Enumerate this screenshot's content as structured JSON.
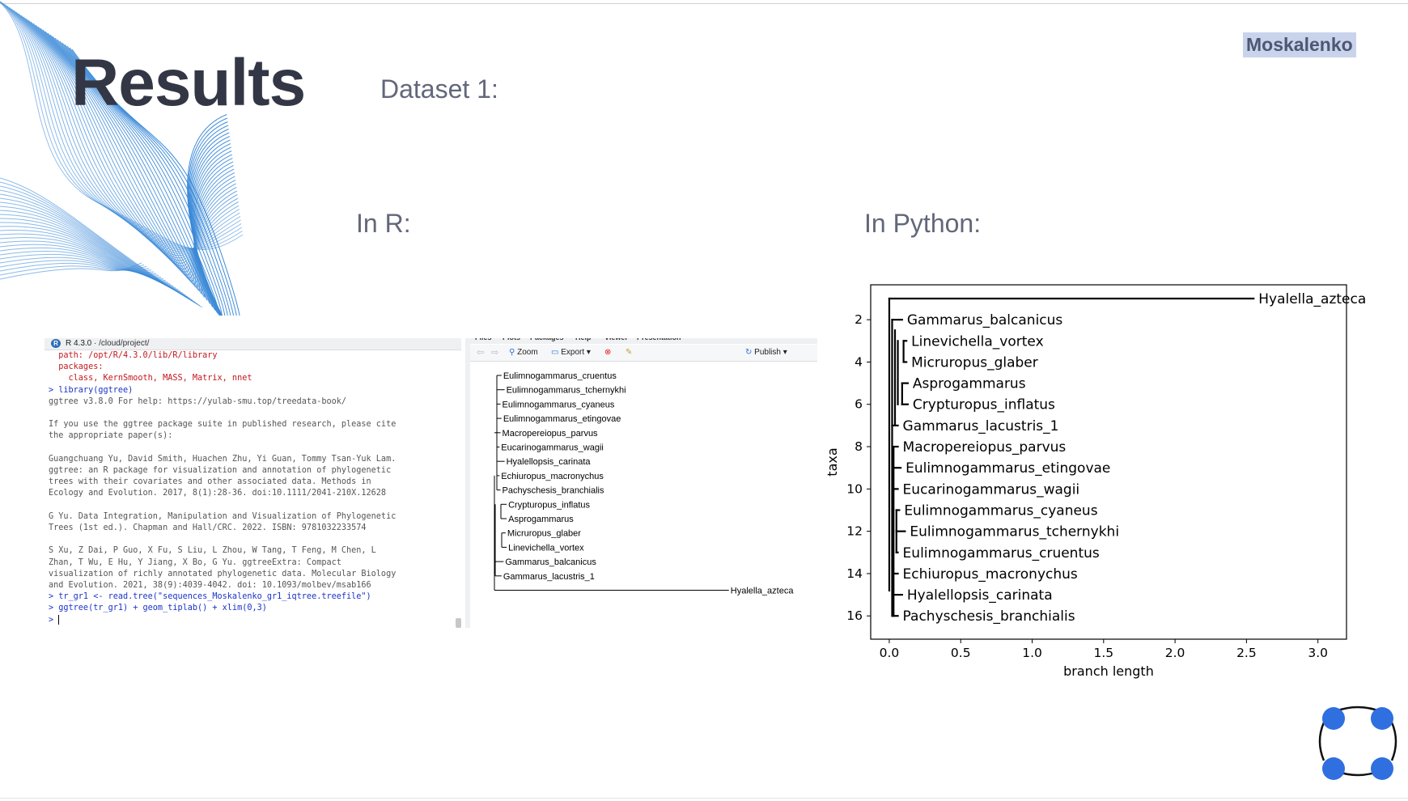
{
  "slide": {
    "title": "Results",
    "author": "Moskalenko",
    "dataset_label": "Dataset 1:",
    "r_label": "In R:",
    "python_label": "In Python:"
  },
  "rstudio": {
    "console_title": "R 4.3.0",
    "console_path": "/cloud/project/",
    "console_lines": [
      {
        "text": "  path: /opt/R/4.3.0/lib/R/library",
        "style": "red"
      },
      {
        "text": "  packages:",
        "style": "red"
      },
      {
        "text": "    class, KernSmooth, MASS, Matrix, nnet",
        "style": "red"
      },
      {
        "text": "> library(ggtree)",
        "style": "blue"
      },
      {
        "text": "ggtree v3.8.0 For help: https://yulab-smu.top/treedata-book/",
        "style": "gray"
      },
      {
        "text": "",
        "style": "gray"
      },
      {
        "text": "If you use the ggtree package suite in published research, please cite",
        "style": "gray"
      },
      {
        "text": "the appropriate paper(s):",
        "style": "gray"
      },
      {
        "text": "",
        "style": "gray"
      },
      {
        "text": "Guangchuang Yu, David Smith, Huachen Zhu, Yi Guan, Tommy Tsan-Yuk Lam.",
        "style": "gray"
      },
      {
        "text": "ggtree: an R package for visualization and annotation of phylogenetic",
        "style": "gray"
      },
      {
        "text": "trees with their covariates and other associated data. Methods in",
        "style": "gray"
      },
      {
        "text": "Ecology and Evolution. 2017, 8(1):28-36. doi:10.1111/2041-210X.12628",
        "style": "gray"
      },
      {
        "text": "",
        "style": "gray"
      },
      {
        "text": "G Yu. Data Integration, Manipulation and Visualization of Phylogenetic",
        "style": "gray"
      },
      {
        "text": "Trees (1st ed.). Chapman and Hall/CRC. 2022. ISBN: 9781032233574",
        "style": "gray"
      },
      {
        "text": "",
        "style": "gray"
      },
      {
        "text": "S Xu, Z Dai, P Guo, X Fu, S Liu, L Zhou, W Tang, T Feng, M Chen, L",
        "style": "gray"
      },
      {
        "text": "Zhan, T Wu, E Hu, Y Jiang, X Bo, G Yu. ggtreeExtra: Compact",
        "style": "gray"
      },
      {
        "text": "visualization of richly annotated phylogenetic data. Molecular Biology",
        "style": "gray"
      },
      {
        "text": "and Evolution. 2021, 38(9):4039-4042. doi: 10.1093/molbev/msab166",
        "style": "gray"
      },
      {
        "text": "> tr_gr1 <- read.tree(\"sequences_Moskalenko_gr1_iqtree.treefile\")",
        "style": "blue"
      },
      {
        "text": "> ggtree(tr_gr1) + geom_tiplab() + xlim(0,3)",
        "style": "blue"
      }
    ],
    "prompt": "> ",
    "viewer_tabs": [
      "Files",
      "Plots",
      "Packages",
      "Help",
      "Viewer",
      "Presentation"
    ],
    "toolbar": {
      "zoom": "Zoom",
      "export": "Export",
      "publish": "Publish"
    },
    "tree_tips": [
      "Eulimnogammarus_cruentus",
      "Eulimnogammarus_tchernykhi",
      "Eulimnogammarus_cyaneus",
      "Eulimnogammarus_etingovae",
      "Macropereiopus_parvus",
      "Eucarinogammarus_wagii",
      "Hyalellopsis_carinata",
      "Echiuropus_macronychus",
      "Pachyschesis_branchialis",
      "Crypturopus_inflatus",
      "Asprogammarus",
      "Micruropus_glaber",
      "Linevichella_vortex",
      "Gammarus_balcanicus",
      "Gammarus_lacustris_1",
      "Hyalella_azteca"
    ],
    "tree_tip_branch_length": [
      0.07,
      0.1,
      0.06,
      0.07,
      0.06,
      0.05,
      0.1,
      0.05,
      0.06,
      0.12,
      0.12,
      0.11,
      0.12,
      0.09,
      0.07,
      2.3
    ]
  },
  "chart_data": {
    "type": "dendrogram",
    "xlabel": "branch length",
    "ylabel": "taxa",
    "xlim": [
      -0.13,
      3.2
    ],
    "ylim": [
      17.1,
      0.35
    ],
    "xticks": [
      0.0,
      0.5,
      1.0,
      1.5,
      2.0,
      2.5,
      3.0
    ],
    "xtick_labels": [
      "0.0",
      "0.5",
      "1.0",
      "1.5",
      "2.0",
      "2.5",
      "3.0"
    ],
    "yticks": [
      2,
      4,
      6,
      8,
      10,
      12,
      14,
      16
    ],
    "tips": [
      {
        "name": "Hyalella_azteca",
        "y": 1,
        "x": 2.55
      },
      {
        "name": "Gammarus_balcanicus",
        "y": 2,
        "x": 0.09
      },
      {
        "name": "Linevichella_vortex",
        "y": 3,
        "x": 0.12
      },
      {
        "name": "Micruropus_glaber",
        "y": 4,
        "x": 0.12
      },
      {
        "name": "Asprogammarus",
        "y": 5,
        "x": 0.13
      },
      {
        "name": "Crypturopus_inflatus",
        "y": 6,
        "x": 0.13
      },
      {
        "name": "Gammarus_lacustris_1",
        "y": 7,
        "x": 0.06
      },
      {
        "name": "Macropereiopus_parvus",
        "y": 8,
        "x": 0.06
      },
      {
        "name": "Eulimnogammarus_etingovae",
        "y": 9,
        "x": 0.08
      },
      {
        "name": "Eucarinogammarus_wagii",
        "y": 10,
        "x": 0.06
      },
      {
        "name": "Eulimnogammarus_cyaneus",
        "y": 11,
        "x": 0.07
      },
      {
        "name": "Eulimnogammarus_tchernykhi",
        "y": 12,
        "x": 0.11
      },
      {
        "name": "Eulimnogammarus_cruentus",
        "y": 13,
        "x": 0.06
      },
      {
        "name": "Echiuropus_macronychus",
        "y": 14,
        "x": 0.06
      },
      {
        "name": "Hyalellopsis_carinata",
        "y": 15,
        "x": 0.09
      },
      {
        "name": "Pachyschesis_branchialis",
        "y": 16,
        "x": 0.06
      }
    ]
  },
  "colors": {
    "accent_blue": "#2f6fe0",
    "title": "#333745",
    "subtitle": "#62677a",
    "deco_lines": "#3c8ad8"
  }
}
